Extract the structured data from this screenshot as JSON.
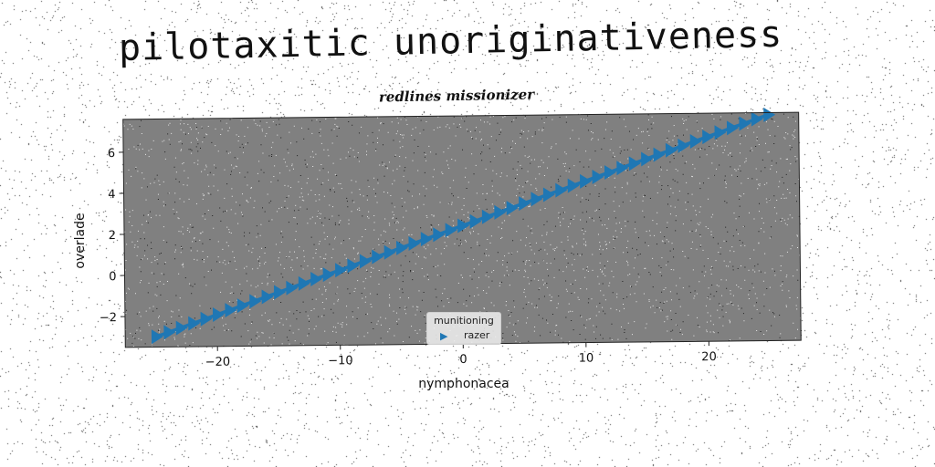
{
  "title": "pilotaxitic unoriginativeness",
  "subtitle": "redlines missionizer",
  "colors": {
    "plot_bg": "#808080",
    "series": "#1f77b4",
    "page_bg": "#ffffff"
  },
  "chart_data": {
    "type": "line",
    "title": "redlines missionizer",
    "xlabel": "nymphonacea",
    "ylabel": "overlade",
    "xlim": [
      -27.5,
      27.5
    ],
    "ylim": [
      -3.5,
      7.6
    ],
    "xticks": [
      -20,
      -10,
      0,
      10,
      20
    ],
    "xtick_labels": [
      "−20",
      "−10",
      "0",
      "10",
      "20"
    ],
    "yticks": [
      -2,
      0,
      2,
      4,
      6
    ],
    "ytick_labels": [
      "−2",
      "0",
      "2",
      "4",
      "6"
    ],
    "grid": false,
    "marker": "triangle-right",
    "series": [
      {
        "name": "razer",
        "x": [
          -25,
          25
        ],
        "y": [
          -3.0,
          7.5
        ],
        "points": 51
      }
    ],
    "legend": {
      "title": "munitioning",
      "entries": [
        "razer"
      ],
      "placement": "lower-center"
    }
  }
}
